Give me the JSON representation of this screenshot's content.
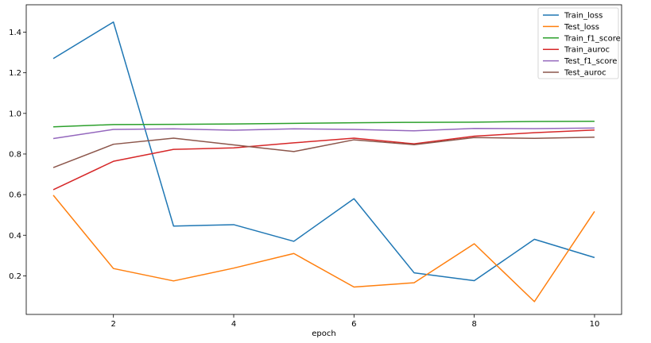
{
  "chart_data": {
    "type": "line",
    "title": "",
    "xlabel": "epoch",
    "ylabel": "",
    "x": [
      1,
      2,
      3,
      4,
      5,
      6,
      7,
      8,
      9,
      10
    ],
    "xlim": [
      0.55,
      10.45
    ],
    "ylim": [
      0.01,
      1.535
    ],
    "xticks": [
      2,
      4,
      6,
      8,
      10
    ],
    "yticks": [
      0.2,
      0.4,
      0.6,
      0.8,
      1.0,
      1.2,
      1.4
    ],
    "ytick_labels": [
      "0.2",
      "0.4",
      "0.6",
      "0.8",
      "1.0",
      "1.2",
      "1.4"
    ],
    "grid": false,
    "legend_position": "top-right",
    "series": [
      {
        "name": "Train_loss",
        "color": "#1f77b4",
        "values": [
          1.27,
          1.45,
          0.445,
          0.452,
          0.37,
          0.58,
          0.215,
          0.176,
          0.38,
          0.29
        ]
      },
      {
        "name": "Test_loss",
        "color": "#ff7f0e",
        "values": [
          0.597,
          0.236,
          0.175,
          0.238,
          0.31,
          0.145,
          0.166,
          0.358,
          0.073,
          0.517
        ]
      },
      {
        "name": "Train_f1_score",
        "color": "#2ca02c",
        "values": [
          0.934,
          0.945,
          0.946,
          0.948,
          0.951,
          0.954,
          0.956,
          0.957,
          0.96,
          0.961
        ]
      },
      {
        "name": "Train_auroc",
        "color": "#d62728",
        "values": [
          0.624,
          0.764,
          0.823,
          0.83,
          0.855,
          0.878,
          0.85,
          0.888,
          0.905,
          0.918
        ]
      },
      {
        "name": "Test_f1_score",
        "color": "#9467bd",
        "values": [
          0.876,
          0.921,
          0.924,
          0.917,
          0.924,
          0.921,
          0.914,
          0.926,
          0.925,
          0.928
        ]
      },
      {
        "name": "Test_auroc",
        "color": "#8c564b",
        "values": [
          0.733,
          0.848,
          0.878,
          0.845,
          0.812,
          0.87,
          0.846,
          0.881,
          0.877,
          0.883
        ]
      }
    ]
  }
}
